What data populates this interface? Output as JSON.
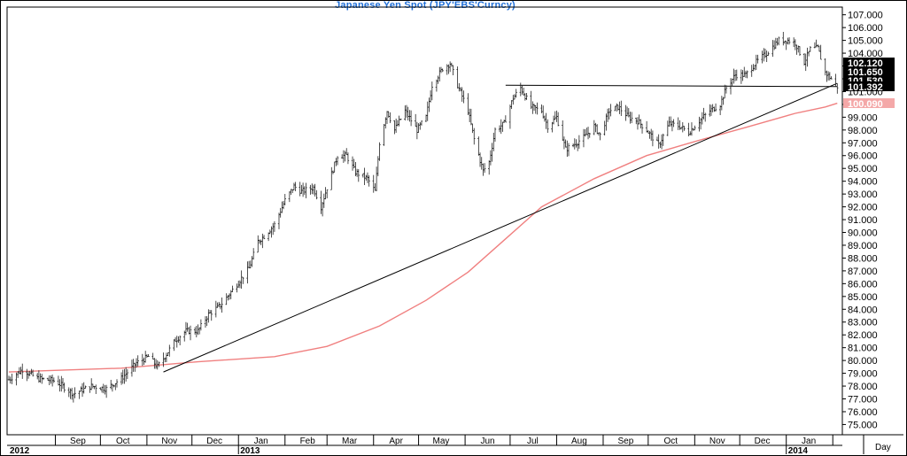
{
  "chart_data": {
    "type": "ohlc",
    "title": "Japanese Yen Spot (JPY'EBS'Curncy)",
    "x_axis_label": "Day",
    "ylim": [
      74.2,
      107.6
    ],
    "y_ticks": [
      "75.000",
      "76.000",
      "77.000",
      "78.000",
      "79.000",
      "80.000",
      "81.000",
      "82.000",
      "83.000",
      "84.000",
      "85.000",
      "86.000",
      "87.000",
      "88.000",
      "89.000",
      "90.000",
      "91.000",
      "92.000",
      "93.000",
      "94.000",
      "95.000",
      "96.000",
      "97.000",
      "98.000",
      "99.000",
      "100.000",
      "101.000",
      "102.000",
      "103.000",
      "104.000",
      "105.000",
      "106.000",
      "107.000"
    ],
    "month_labels": [
      "Sep",
      "Oct",
      "Nov",
      "Dec",
      "Jan",
      "Feb",
      "Mar",
      "Apr",
      "May",
      "Jun",
      "Jul",
      "Aug",
      "Sep",
      "Oct",
      "Nov",
      "Dec",
      "Jan"
    ],
    "year_labels": [
      "2012",
      "2013",
      "2014"
    ],
    "price_tags": [
      {
        "label": "102.120",
        "value": 102.12,
        "bg": "#000000",
        "fg": "#ffffff"
      },
      {
        "label": "101.650",
        "value": 101.65,
        "bg": "#000000",
        "fg": "#ffffff"
      },
      {
        "label": "101.530",
        "value": 101.53,
        "bg": "#000000",
        "fg": "#ffffff"
      },
      {
        "label": "101.392",
        "value": 101.392,
        "bg": "#000000",
        "fg": "#ffffff"
      },
      {
        "label": "100.090",
        "value": 100.09,
        "bg": "#f4a8a8",
        "fg": "#ffffff"
      }
    ],
    "price_anchors": [
      [
        "2012-08-01",
        78.5
      ],
      [
        "2012-08-10",
        79.3
      ],
      [
        "2012-08-20",
        78.6
      ],
      [
        "2012-09-01",
        78.4
      ],
      [
        "2012-09-13",
        77.4
      ],
      [
        "2012-09-25",
        78.0
      ],
      [
        "2012-10-05",
        77.8
      ],
      [
        "2012-10-15",
        78.6
      ],
      [
        "2012-10-25",
        79.8
      ],
      [
        "2012-11-02",
        80.3
      ],
      [
        "2012-11-08",
        79.5
      ],
      [
        "2012-11-14",
        80.5
      ],
      [
        "2012-11-20",
        81.6
      ],
      [
        "2012-11-27",
        82.3
      ],
      [
        "2012-12-05",
        82.3
      ],
      [
        "2012-12-12",
        83.6
      ],
      [
        "2012-12-20",
        84.3
      ],
      [
        "2012-12-28",
        85.5
      ],
      [
        "2013-01-08",
        87.2
      ],
      [
        "2013-01-14",
        89.3
      ],
      [
        "2013-01-18",
        89.7
      ],
      [
        "2013-01-25",
        90.6
      ],
      [
        "2013-02-01",
        92.5
      ],
      [
        "2013-02-07",
        93.6
      ],
      [
        "2013-02-12",
        93.2
      ],
      [
        "2013-02-20",
        93.5
      ],
      [
        "2013-02-25",
        92.0
      ],
      [
        "2013-03-01",
        93.5
      ],
      [
        "2013-03-08",
        96.0
      ],
      [
        "2013-03-14",
        96.0
      ],
      [
        "2013-03-20",
        94.7
      ],
      [
        "2013-03-28",
        94.2
      ],
      [
        "2013-04-02",
        93.2
      ],
      [
        "2013-04-05",
        97.0
      ],
      [
        "2013-04-10",
        99.5
      ],
      [
        "2013-04-15",
        98.0
      ],
      [
        "2013-04-22",
        99.5
      ],
      [
        "2013-04-30",
        98.0
      ],
      [
        "2013-05-06",
        99.0
      ],
      [
        "2013-05-10",
        101.5
      ],
      [
        "2013-05-17",
        102.8
      ],
      [
        "2013-05-22",
        103.2
      ],
      [
        "2013-05-27",
        101.5
      ],
      [
        "2013-06-03",
        99.5
      ],
      [
        "2013-06-07",
        97.3
      ],
      [
        "2013-06-13",
        94.8
      ],
      [
        "2013-06-17",
        95.5
      ],
      [
        "2013-06-21",
        98.0
      ],
      [
        "2013-06-27",
        98.5
      ],
      [
        "2013-07-03",
        100.5
      ],
      [
        "2013-07-08",
        101.3
      ],
      [
        "2013-07-15",
        99.8
      ],
      [
        "2013-07-22",
        99.5
      ],
      [
        "2013-07-26",
        98.3
      ],
      [
        "2013-08-01",
        99.0
      ],
      [
        "2013-08-07",
        96.5
      ],
      [
        "2013-08-13",
        96.9
      ],
      [
        "2013-08-20",
        97.5
      ],
      [
        "2013-08-26",
        98.3
      ],
      [
        "2013-08-30",
        97.6
      ],
      [
        "2013-09-05",
        99.5
      ],
      [
        "2013-09-11",
        99.8
      ],
      [
        "2013-09-18",
        99.0
      ],
      [
        "2013-09-24",
        98.7
      ],
      [
        "2013-09-30",
        98.0
      ],
      [
        "2013-10-08",
        96.8
      ],
      [
        "2013-10-15",
        98.5
      ],
      [
        "2013-10-22",
        98.3
      ],
      [
        "2013-10-28",
        97.8
      ],
      [
        "2013-11-04",
        98.7
      ],
      [
        "2013-11-11",
        99.5
      ],
      [
        "2013-11-18",
        100.0
      ],
      [
        "2013-11-22",
        101.3
      ],
      [
        "2013-11-28",
        102.3
      ],
      [
        "2013-12-05",
        102.3
      ],
      [
        "2013-12-12",
        103.3
      ],
      [
        "2013-12-19",
        104.0
      ],
      [
        "2013-12-27",
        105.0
      ],
      [
        "2014-01-02",
        105.0
      ],
      [
        "2014-01-07",
        104.8
      ],
      [
        "2014-01-13",
        103.3
      ],
      [
        "2014-01-17",
        104.3
      ],
      [
        "2014-01-22",
        104.4
      ],
      [
        "2014-01-27",
        102.5
      ],
      [
        "2014-01-31",
        102.0
      ],
      [
        "2014-02-04",
        101.4
      ]
    ],
    "moving_average": [
      [
        "2012-08-01",
        79.1
      ],
      [
        "2012-10-15",
        79.4
      ],
      [
        "2012-12-05",
        79.9
      ],
      [
        "2013-01-25",
        80.3
      ],
      [
        "2013-03-01",
        81.1
      ],
      [
        "2013-04-05",
        82.7
      ],
      [
        "2013-05-06",
        84.7
      ],
      [
        "2013-06-03",
        86.9
      ],
      [
        "2013-06-27",
        89.4
      ],
      [
        "2013-07-22",
        92.0
      ],
      [
        "2013-08-26",
        94.2
      ],
      [
        "2013-09-30",
        96.0
      ],
      [
        "2013-11-04",
        97.2
      ],
      [
        "2013-12-05",
        98.2
      ],
      [
        "2014-01-07",
        99.3
      ],
      [
        "2014-01-27",
        99.8
      ],
      [
        "2014-02-04",
        100.09
      ]
    ],
    "trendlines": [
      {
        "name": "support",
        "start": [
          "2012-11-12",
          79.1
        ],
        "end": [
          "2014-02-04",
          101.65
        ]
      },
      {
        "name": "resistance",
        "start": [
          "2013-06-28",
          101.5
        ],
        "end": [
          "2014-02-04",
          101.39
        ]
      }
    ]
  }
}
